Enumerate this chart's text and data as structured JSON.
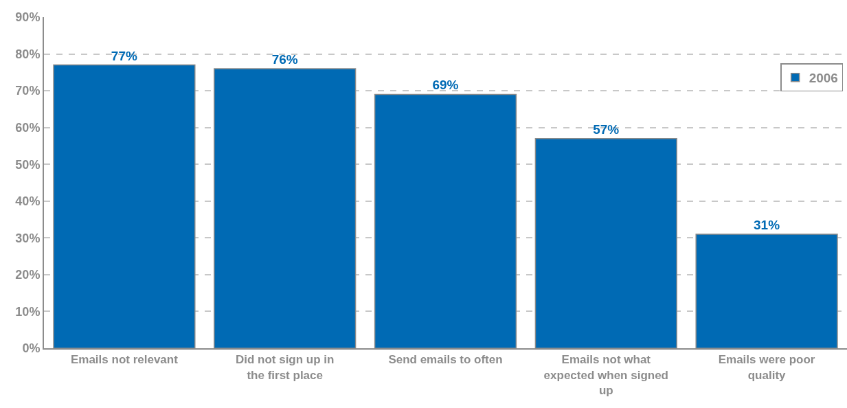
{
  "chart_data": {
    "type": "bar",
    "categories": [
      "Emails not relevant",
      "Did not sign up in the first place",
      "Send emails to often",
      "Emails not what expected when signed up",
      "Emails were poor quality"
    ],
    "series": [
      {
        "name": "2006",
        "color": "#006ab4",
        "values": [
          77,
          76,
          69,
          57,
          31
        ],
        "value_labels": [
          "77%",
          "76%",
          "69%",
          "57%",
          "31%"
        ]
      }
    ],
    "ylim": [
      0,
      90
    ],
    "yticks": [
      {
        "value": 0,
        "label": "0%"
      },
      {
        "value": 10,
        "label": "10%"
      },
      {
        "value": 20,
        "label": "20%"
      },
      {
        "value": 30,
        "label": "30%"
      },
      {
        "value": 40,
        "label": "40%"
      },
      {
        "value": 50,
        "label": "50%"
      },
      {
        "value": 60,
        "label": "60%"
      },
      {
        "value": 70,
        "label": "70%"
      },
      {
        "value": 80,
        "label": "80%"
      },
      {
        "value": 90,
        "label": "90%"
      }
    ],
    "grid": "y",
    "legend": "top right"
  }
}
